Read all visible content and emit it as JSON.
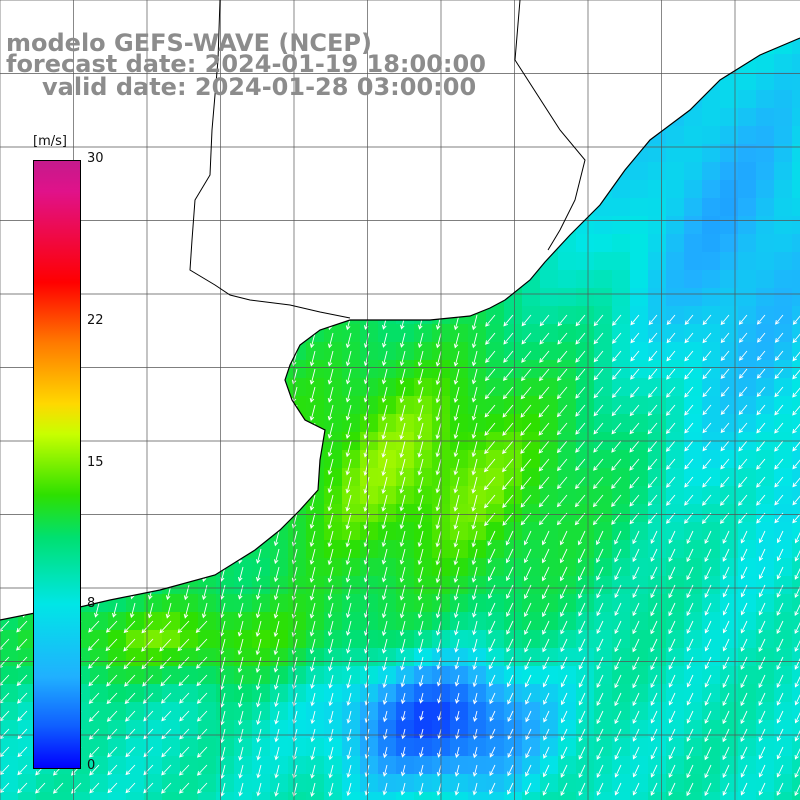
{
  "title": {
    "line1": "modelo GEFS-WAVE (NCEP)",
    "line2": "forecast date: 2024-01-19 18:00:00",
    "line3": "valid date: 2024-01-28 03:00:00"
  },
  "colorbar": {
    "unit": "[m/s]",
    "ticks": [
      {
        "label": "30",
        "value": 30
      },
      {
        "label": "22",
        "value": 22
      },
      {
        "label": "15",
        "value": 15
      },
      {
        "label": "8",
        "value": 8
      },
      {
        "label": "0",
        "value": 0
      }
    ],
    "range": [
      0,
      30
    ]
  },
  "map": {
    "variable": "wind speed and direction",
    "colors": {
      "land": "#ffffff",
      "coast": "#000000",
      "grid": "#555555",
      "arrow": "#ffffff"
    }
  }
}
